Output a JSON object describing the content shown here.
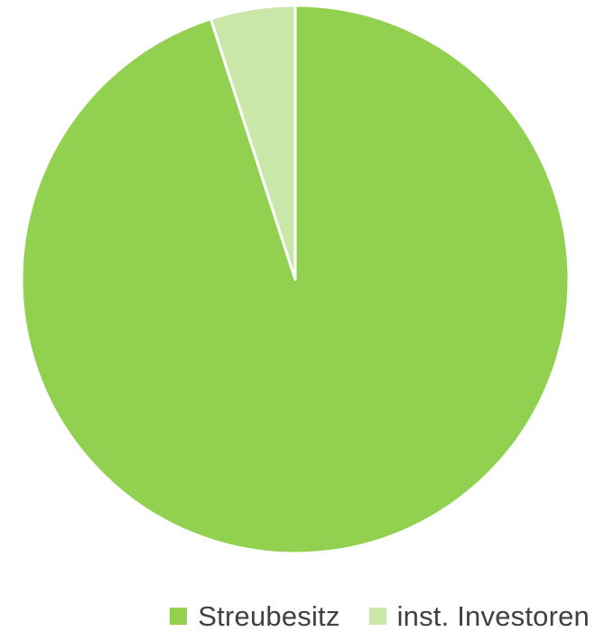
{
  "chart_data": {
    "type": "pie",
    "title": "",
    "start_angle_deg": 0,
    "direction": "clockwise",
    "slices": [
      {
        "label": "Streubesitz",
        "value": 95,
        "color": "#92d050"
      },
      {
        "label": "inst. Investoren",
        "value": 5,
        "color": "#c9e7a8"
      }
    ],
    "slice_border_color": "#ffffff",
    "legend_position": "bottom"
  }
}
